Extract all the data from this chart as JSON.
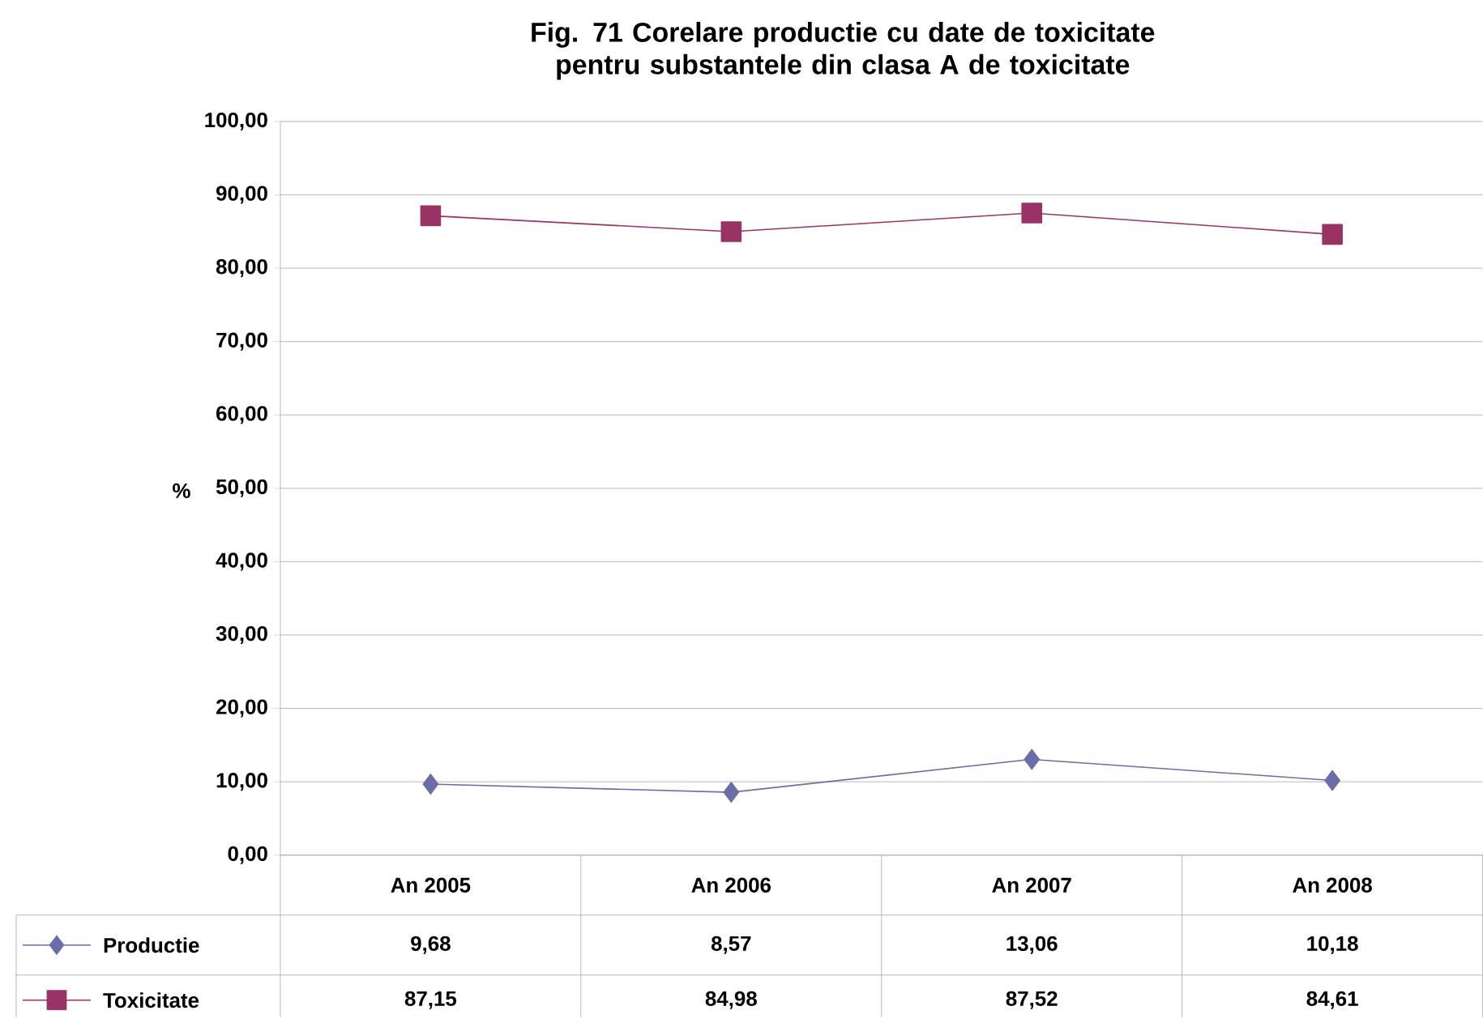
{
  "chart_data": {
    "type": "line",
    "title": "Fig. 71 Corelare productie cu date de toxicitate pentru substantele din clasa A de toxicitate",
    "ylabel": "%",
    "categories": [
      "An 2005",
      "An 2006",
      "An 2007",
      "An 2008"
    ],
    "series": [
      {
        "name": "Productie",
        "color": "#6a6ea8",
        "marker": "diamond",
        "values": [
          9.68,
          8.57,
          13.06,
          10.18
        ],
        "value_labels": [
          "9,68",
          "8,57",
          "13,06",
          "10,18"
        ]
      },
      {
        "name": "Toxicitate",
        "color": "#993366",
        "marker": "square",
        "values": [
          87.15,
          84.98,
          87.52,
          84.61
        ],
        "value_labels": [
          "87,15",
          "84,98",
          "87,52",
          "84,61"
        ]
      }
    ],
    "ylim": [
      0,
      100
    ],
    "yticks": [
      {
        "value": 0,
        "label": "0,00"
      },
      {
        "value": 10,
        "label": "10,00"
      },
      {
        "value": 20,
        "label": "20,00"
      },
      {
        "value": 30,
        "label": "30,00"
      },
      {
        "value": 40,
        "label": "40,00"
      },
      {
        "value": 50,
        "label": "50,00"
      },
      {
        "value": 60,
        "label": "60,00"
      },
      {
        "value": 70,
        "label": "70,00"
      },
      {
        "value": 80,
        "label": "80,00"
      },
      {
        "value": 90,
        "label": "90,00"
      },
      {
        "value": 100,
        "label": "100,00"
      }
    ],
    "grid": "y",
    "legend": "bottom"
  }
}
